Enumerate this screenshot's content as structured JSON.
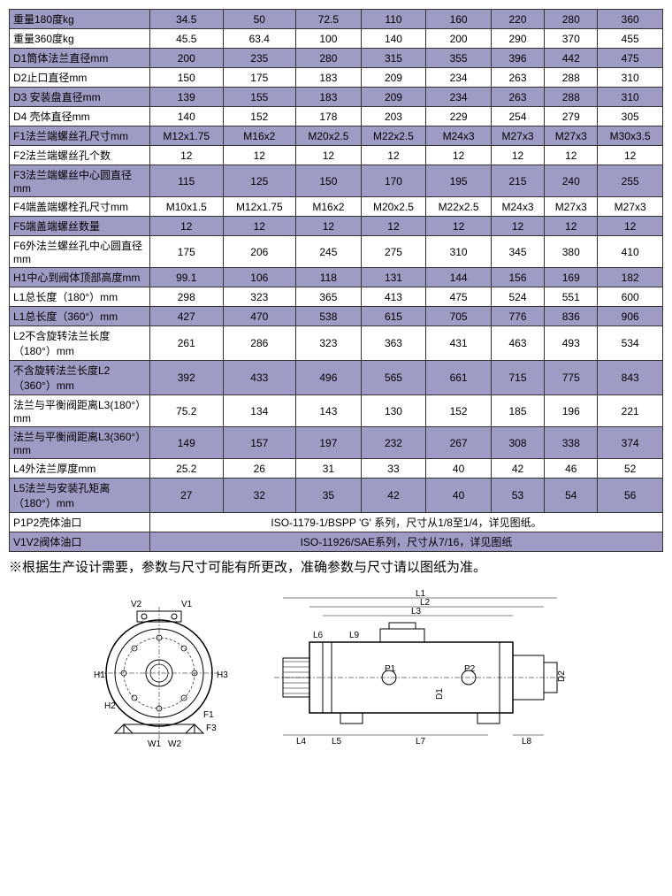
{
  "colors": {
    "alt_row": "#9e9cc5",
    "plain_row": "#ffffff",
    "border": "#333333",
    "text": "#000000"
  },
  "col_width_label": 150,
  "num_data_cols": 8,
  "rows": [
    {
      "label": "重量180度kg",
      "vals": [
        "34.5",
        "50",
        "72.5",
        "110",
        "160",
        "220",
        "280",
        "360"
      ],
      "alt": true
    },
    {
      "label": "重量360度kg",
      "vals": [
        "45.5",
        "63.4",
        "100",
        "140",
        "200",
        "290",
        "370",
        "455"
      ],
      "alt": false
    },
    {
      "label": "D1筒体法兰直径mm",
      "vals": [
        "200",
        "235",
        "280",
        "315",
        "355",
        "396",
        "442",
        "475"
      ],
      "alt": true
    },
    {
      "label": "D2止口直径mm",
      "vals": [
        "150",
        "175",
        "183",
        "209",
        "234",
        "263",
        "288",
        "310"
      ],
      "alt": false
    },
    {
      "label": "D3 安装盘直径mm",
      "vals": [
        "139",
        "155",
        "183",
        "209",
        "234",
        "263",
        "288",
        "310"
      ],
      "alt": true
    },
    {
      "label": "D4 壳体直径mm",
      "vals": [
        "140",
        "152",
        "178",
        "203",
        "229",
        "254",
        "279",
        "305"
      ],
      "alt": false
    },
    {
      "label": "F1法兰端螺丝孔尺寸mm",
      "vals": [
        "M12x1.75",
        "M16x2",
        "M20x2.5",
        "M22x2.5",
        "M24x3",
        "M27x3",
        "M27x3",
        "M30x3.5"
      ],
      "alt": true
    },
    {
      "label": "F2法兰端螺丝孔个数",
      "vals": [
        "12",
        "12",
        "12",
        "12",
        "12",
        "12",
        "12",
        "12"
      ],
      "alt": false
    },
    {
      "label": "F3法兰端螺丝中心圆直径mm",
      "vals": [
        "115",
        "125",
        "150",
        "170",
        "195",
        "215",
        "240",
        "255"
      ],
      "alt": true
    },
    {
      "label": "F4端盖端螺栓孔尺寸mm",
      "vals": [
        "M10x1.5",
        "M12x1.75",
        "M16x2",
        "M20x2.5",
        "M22x2.5",
        "M24x3",
        "M27x3",
        "M27x3"
      ],
      "alt": false
    },
    {
      "label": "F5端盖端螺丝数量",
      "vals": [
        "12",
        "12",
        "12",
        "12",
        "12",
        "12",
        "12",
        "12"
      ],
      "alt": true
    },
    {
      "label": "F6外法兰螺丝孔中心圆直径mm",
      "vals": [
        "175",
        "206",
        "245",
        "275",
        "310",
        "345",
        "380",
        "410"
      ],
      "alt": false
    },
    {
      "label": "H1中心到阀体顶部高度mm",
      "vals": [
        "99.1",
        "106",
        "118",
        "131",
        "144",
        "156",
        "169",
        "182"
      ],
      "alt": true
    },
    {
      "label": "L1总长度（180°）mm",
      "vals": [
        "298",
        "323",
        "365",
        "413",
        "475",
        "524",
        "551",
        "600"
      ],
      "alt": false
    },
    {
      "label": "L1总长度（360°）mm",
      "vals": [
        "427",
        "470",
        "538",
        "615",
        "705",
        "776",
        "836",
        "906"
      ],
      "alt": true
    },
    {
      "label": "L2不含旋转法兰长度（180°）mm",
      "vals": [
        "261",
        "286",
        "323",
        "363",
        "431",
        "463",
        "493",
        "534"
      ],
      "alt": false
    },
    {
      "label": "不含旋转法兰长度L2（360°）mm",
      "vals": [
        "392",
        "433",
        "496",
        "565",
        "661",
        "715",
        "775",
        "843"
      ],
      "alt": true
    },
    {
      "label": "法兰与平衡阀距离L3(180°）mm",
      "vals": [
        "75.2",
        "134",
        "143",
        "130",
        "152",
        "185",
        "196",
        "221"
      ],
      "alt": false
    },
    {
      "label": "法兰与平衡阀距离L3(360°）mm",
      "vals": [
        "149",
        "157",
        "197",
        "232",
        "267",
        "308",
        "338",
        "374"
      ],
      "alt": true
    },
    {
      "label": "L4外法兰厚度mm",
      "vals": [
        "25.2",
        "26",
        "31",
        "33",
        "40",
        "42",
        "46",
        "52"
      ],
      "alt": false
    },
    {
      "label": "L5法兰与安装孔矩离（180°）mm",
      "vals": [
        "27",
        "32",
        "35",
        "42",
        "40",
        "53",
        "54",
        "56"
      ],
      "alt": true
    }
  ],
  "merged_rows": [
    {
      "label": "P1P2壳体油口",
      "text": "ISO-1179-1/BSPP 'G' 系列，尺寸从1/8至1/4，详见图纸。",
      "alt": false
    },
    {
      "label": "V1V2阀体油口",
      "text": "ISO-11926/SAE系列，尺寸从7/16，详见图纸",
      "alt": true
    }
  ],
  "note_text": "※根据生产设计需要，参数与尺寸可能有所更改，准确参数与尺寸请以图纸为准。",
  "front_view": {
    "labels": [
      "V1",
      "V2",
      "H1",
      "H2",
      "H3",
      "W1",
      "W2",
      "F1",
      "F3"
    ]
  },
  "side_view": {
    "labels": [
      "L1",
      "L2",
      "L3",
      "L4",
      "L5",
      "L6",
      "L7",
      "L8",
      "L9",
      "P1",
      "P2",
      "D1",
      "D2"
    ]
  }
}
